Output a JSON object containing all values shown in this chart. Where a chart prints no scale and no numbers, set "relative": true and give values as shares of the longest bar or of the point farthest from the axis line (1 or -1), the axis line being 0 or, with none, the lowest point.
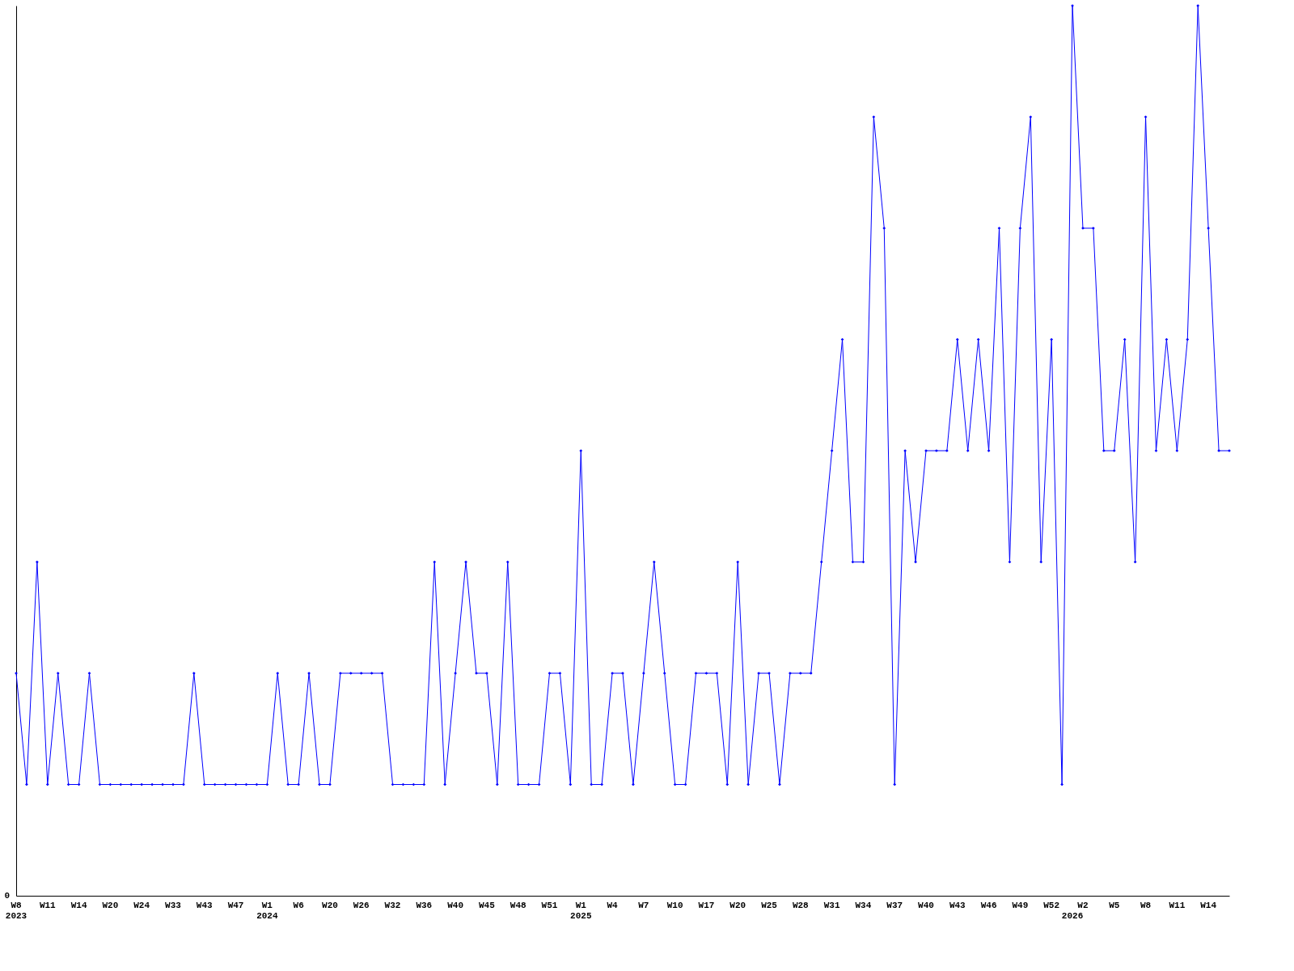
{
  "chart_data": {
    "type": "line",
    "relative": true,
    "marker": "diamond",
    "grid": false,
    "annotations": [
      "0"
    ],
    "categories": [
      "W8\n2023",
      null,
      null,
      "W11",
      null,
      null,
      "W14",
      null,
      null,
      "W20",
      null,
      null,
      "W24",
      null,
      null,
      "W33",
      null,
      null,
      "W43",
      null,
      null,
      "W47",
      null,
      null,
      "W1\n2024",
      null,
      null,
      "W6",
      null,
      null,
      "W20",
      null,
      null,
      "W26",
      null,
      null,
      "W32",
      null,
      null,
      "W36",
      null,
      null,
      "W40",
      null,
      null,
      "W45",
      null,
      null,
      "W48",
      null,
      null,
      "W51",
      null,
      null,
      "W1\n2025",
      null,
      null,
      "W4",
      null,
      null,
      "W7",
      null,
      null,
      "W10",
      null,
      null,
      "W17",
      null,
      null,
      "W20",
      null,
      null,
      "W25",
      null,
      null,
      "W28",
      null,
      null,
      "W31",
      null,
      null,
      "W34",
      null,
      null,
      "W37",
      null,
      null,
      "W40",
      null,
      null,
      "W43",
      null,
      null,
      "W46",
      null,
      null,
      "W49",
      null,
      null,
      "W52",
      null,
      "\n2026",
      "W2",
      null,
      null,
      "W5",
      null,
      null,
      "W8",
      null,
      null,
      "W11",
      null,
      null,
      "W14",
      null,
      null
    ],
    "series": [
      {
        "color": "#0000ff",
        "values": [
          0.25,
          0.125,
          0.375,
          0.125,
          0.25,
          0.125,
          0.125,
          0.25,
          0.125,
          0.125,
          0.125,
          0.125,
          0.125,
          0.125,
          0.125,
          0.125,
          0.125,
          0.25,
          0.125,
          0.125,
          0.125,
          0.125,
          0.125,
          0.125,
          0.125,
          0.25,
          0.125,
          0.125,
          0.25,
          0.125,
          0.125,
          0.25,
          0.25,
          0.25,
          0.25,
          0.25,
          0.125,
          0.125,
          0.125,
          0.125,
          0.375,
          0.125,
          0.25,
          0.375,
          0.25,
          0.25,
          0.125,
          0.375,
          0.125,
          0.125,
          0.125,
          0.25,
          0.25,
          0.125,
          0.5,
          0.125,
          0.125,
          0.25,
          0.25,
          0.125,
          0.25,
          0.375,
          0.25,
          0.125,
          0.125,
          0.25,
          0.25,
          0.25,
          0.125,
          0.375,
          0.125,
          0.25,
          0.25,
          0.125,
          0.25,
          0.25,
          0.25,
          0.375,
          0.5,
          0.625,
          0.375,
          0.375,
          0.875,
          0.75,
          0.125,
          0.5,
          0.375,
          0.5,
          0.5,
          0.5,
          0.625,
          0.5,
          0.625,
          0.5,
          0.75,
          0.375,
          0.75,
          0.875,
          0.375,
          0.625,
          0.125,
          1,
          0.75,
          0.75,
          0.5,
          0.5,
          0.625,
          0.375,
          0.875,
          0.5,
          0.625,
          0.5,
          0.625,
          1,
          0.75,
          0.5,
          0.5
        ]
      }
    ]
  }
}
